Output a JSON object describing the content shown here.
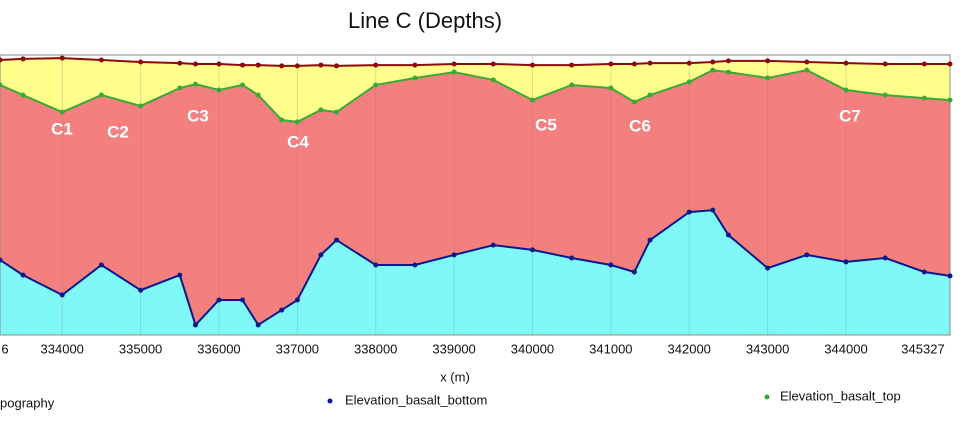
{
  "chart_data": {
    "type": "line",
    "title": "Line C (Depths)",
    "xlabel": "x (m)",
    "x": [
      333206,
      333500,
      334000,
      334500,
      335000,
      335500,
      335700,
      336000,
      336300,
      336500,
      336800,
      337000,
      337300,
      337500,
      338000,
      338500,
      339000,
      339500,
      340000,
      340500,
      341000,
      341300,
      341500,
      342000,
      342300,
      342500,
      343000,
      343500,
      344000,
      344500,
      345000,
      345327
    ],
    "series": [
      {
        "name": "pography",
        "color": "#8b0a0a",
        "fill": "#ffff8c",
        "values": [
          98.2,
          98.6,
          98.9,
          98.2,
          97.5,
          97.1,
          96.8,
          96.8,
          96.4,
          96.4,
          96.1,
          96.1,
          96.4,
          96.1,
          96.4,
          96.4,
          96.8,
          96.8,
          96.4,
          96.4,
          96.8,
          96.8,
          97.1,
          97.1,
          97.5,
          97.9,
          97.9,
          97.5,
          97.1,
          96.8,
          96.8,
          96.8
        ]
      },
      {
        "name": "Elevation_basalt_top",
        "color": "#3aa935",
        "fill": "#f47f7f",
        "values": [
          89.3,
          85.7,
          79.6,
          85.7,
          81.8,
          88.2,
          89.6,
          87.5,
          89.3,
          85.7,
          76.8,
          76.1,
          80.4,
          79.6,
          89.3,
          91.8,
          93.9,
          91.1,
          83.9,
          89.3,
          88.2,
          83.2,
          85.7,
          90.4,
          94.6,
          93.9,
          91.8,
          94.6,
          87.5,
          85.7,
          84.6,
          83.9
        ]
      },
      {
        "name": "Elevation_basalt_bottom",
        "color": "#0a1a8c",
        "fill": "#80f8f8",
        "values": [
          26.8,
          21.4,
          14.3,
          25,
          16,
          21.4,
          3.6,
          12.5,
          12.5,
          3.6,
          8.9,
          12.5,
          28.6,
          33.9,
          25,
          25,
          28.6,
          32.1,
          30.4,
          27.5,
          25,
          22.5,
          33.9,
          43.9,
          44.6,
          35.7,
          23.9,
          28.6,
          26.1,
          27.5,
          22.5,
          21.1
        ]
      }
    ],
    "annotations": [
      "C1",
      "C2",
      "C3",
      "C4",
      "C5",
      "C6",
      "C7"
    ],
    "xlim": [
      333206,
      345327
    ],
    "xticks": [
      {
        "value": 333206,
        "label": "6"
      },
      334000,
      335000,
      336000,
      337000,
      338000,
      339000,
      340000,
      341000,
      342000,
      343000,
      344000,
      345327
    ],
    "ylim": [
      0,
      100
    ],
    "grid": true
  }
}
